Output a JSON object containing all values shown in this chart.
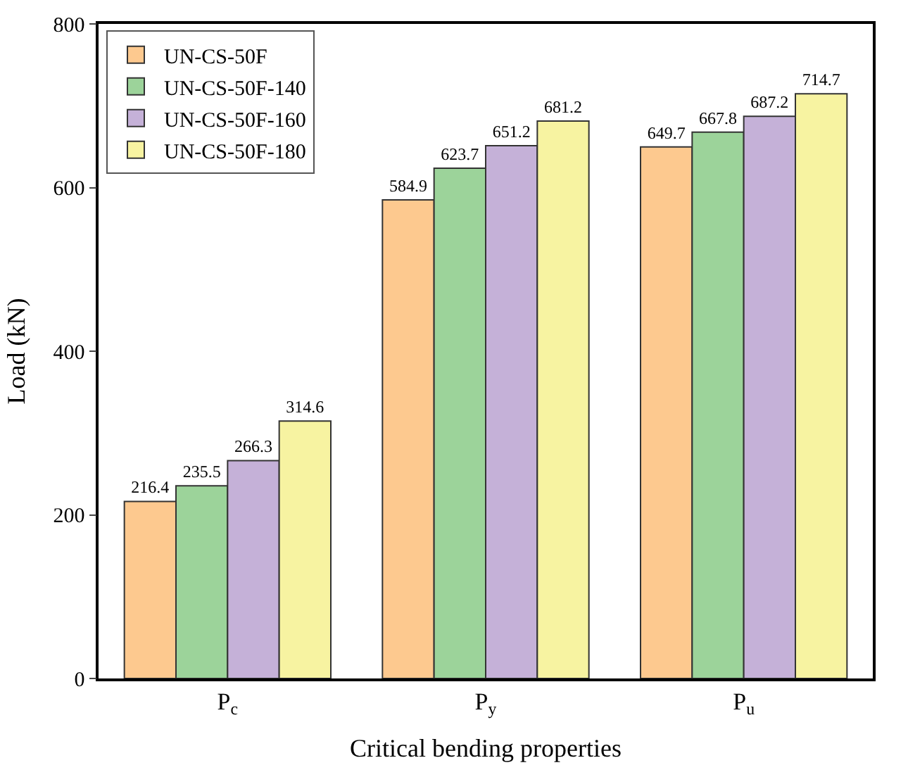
{
  "chart_data": {
    "type": "bar",
    "xlabel": "Critical bending properties",
    "ylabel": "Load (kN)",
    "categories": [
      "P$_{c}$",
      "P$_{y}$",
      "P$_{u}$"
    ],
    "series": [
      {
        "name": "UN-CS-50F",
        "color": "#fdc98f",
        "values": [
          216.4,
          584.9,
          649.7
        ]
      },
      {
        "name": "UN-CS-50F-140",
        "color": "#9cd39a",
        "values": [
          235.5,
          623.7,
          667.8
        ]
      },
      {
        "name": "UN-CS-50F-160",
        "color": "#c5b1d8",
        "values": [
          266.3,
          651.2,
          687.2
        ]
      },
      {
        "name": "UN-CS-50F-180",
        "color": "#f7f3a1",
        "values": [
          314.6,
          681.2,
          714.7
        ]
      }
    ],
    "ylim": [
      0,
      800
    ],
    "yticks": [
      0,
      200,
      400,
      600,
      800
    ],
    "data_labels": true,
    "legend": "top left"
  }
}
